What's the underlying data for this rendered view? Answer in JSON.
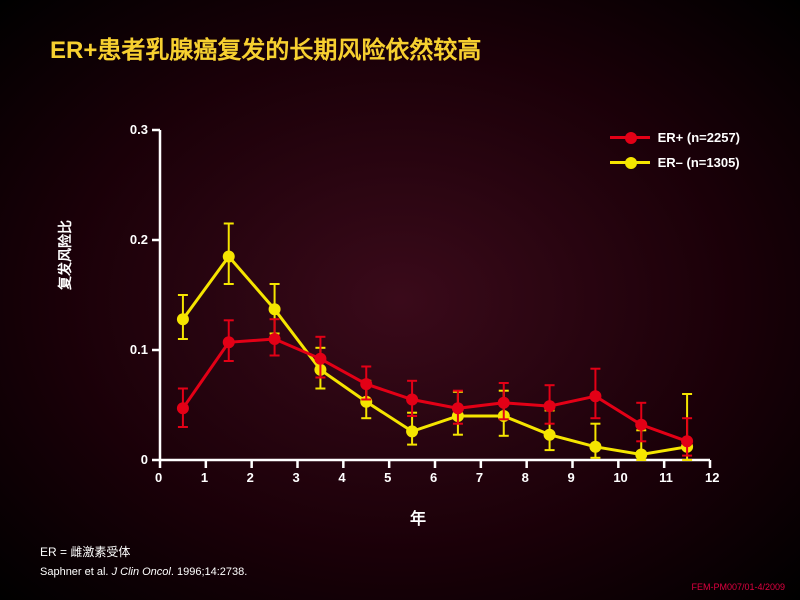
{
  "title": "ER+患者乳腺癌复发的长期风险依然较高",
  "y_axis_label": "复发风险比",
  "x_axis_label": "年",
  "footnote": "ER = 雌激素受体",
  "citation_prefix": "Saphner et al. ",
  "citation_italic": "J Clin Oncol",
  "citation_suffix": ". 1996;14:2738.",
  "doc_code": "FEM-PM007/01-4/2009",
  "legend": {
    "er_pos": "ER+ (n=2257)",
    "er_neg": "ER– (n=1305)"
  },
  "chart": {
    "type": "line-errorbar",
    "xlim": [
      0,
      12
    ],
    "ylim": [
      0,
      0.3
    ],
    "xticks": [
      0,
      1,
      2,
      3,
      4,
      5,
      6,
      7,
      8,
      9,
      10,
      11,
      12
    ],
    "yticks": [
      0,
      0.1,
      0.2,
      0.3
    ],
    "axis_color": "#ffffff",
    "axis_width": 2.5,
    "tick_len": 8,
    "label_fontsize": 13,
    "series": {
      "er_pos": {
        "color": "#e30016",
        "marker_size": 6,
        "line_width": 3,
        "x": [
          0.5,
          1.5,
          2.5,
          3.5,
          4.5,
          5.5,
          6.5,
          7.5,
          8.5,
          9.5,
          10.5,
          11.5
        ],
        "y": [
          0.047,
          0.107,
          0.11,
          0.092,
          0.069,
          0.055,
          0.047,
          0.052,
          0.049,
          0.058,
          0.032,
          0.017
        ],
        "elo": [
          0.03,
          0.09,
          0.095,
          0.075,
          0.055,
          0.04,
          0.033,
          0.037,
          0.033,
          0.038,
          0.017,
          0.004
        ],
        "ehi": [
          0.065,
          0.127,
          0.128,
          0.112,
          0.085,
          0.072,
          0.063,
          0.07,
          0.068,
          0.083,
          0.052,
          0.038
        ]
      },
      "er_neg": {
        "color": "#f5e500",
        "marker_size": 6,
        "line_width": 3,
        "x": [
          0.5,
          1.5,
          2.5,
          3.5,
          4.5,
          5.5,
          6.5,
          7.5,
          8.5,
          9.5,
          10.5,
          11.5
        ],
        "y": [
          0.128,
          0.185,
          0.137,
          0.082,
          0.053,
          0.026,
          0.04,
          0.04,
          0.023,
          0.012,
          0.005,
          0.012
        ],
        "elo": [
          0.11,
          0.16,
          0.115,
          0.065,
          0.038,
          0.014,
          0.023,
          0.022,
          0.009,
          0.002,
          0.0,
          0.0
        ],
        "ehi": [
          0.15,
          0.215,
          0.16,
          0.102,
          0.072,
          0.043,
          0.062,
          0.063,
          0.045,
          0.033,
          0.027,
          0.06
        ]
      }
    }
  }
}
